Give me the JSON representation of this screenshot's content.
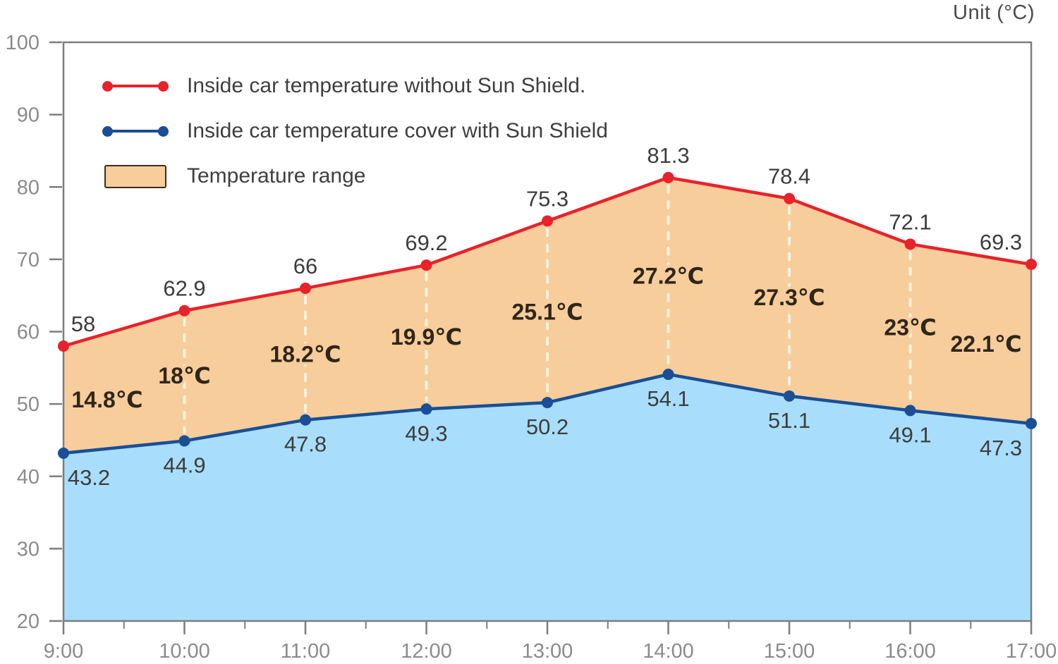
{
  "unit_label": "Unit (°C)",
  "legend": {
    "items": [
      {
        "label": "Inside car temperature without Sun Shield.",
        "marker": "red-line-with-dots",
        "color": "#e8222b"
      },
      {
        "label": "Inside car temperature cover with Sun Shield",
        "marker": "navy-line-with-dots",
        "color": "#1a4e96"
      },
      {
        "label": "Temperature range",
        "marker": "orange-swatch",
        "color": "#f6cd9b"
      }
    ]
  },
  "chart_data": {
    "type": "line",
    "title": "",
    "xlabel": "",
    "ylabel": "Unit (°C)",
    "categories": [
      "9:00",
      "10:00",
      "11:00",
      "12:00",
      "13:00",
      "14:00",
      "15:00",
      "16:00",
      "17:00"
    ],
    "series": [
      {
        "name": "Inside car temperature without Sun Shield.",
        "color": "#e8222b",
        "values": [
          58,
          62.9,
          66,
          69.2,
          75.3,
          81.3,
          78.4,
          72.1,
          69.3
        ]
      },
      {
        "name": "Inside car temperature cover with Sun Shield",
        "color": "#1a4e96",
        "values": [
          43.2,
          44.9,
          47.8,
          49.3,
          50.2,
          54.1,
          51.1,
          49.1,
          47.3
        ]
      }
    ],
    "difference_labels": [
      "14.8℃",
      "18℃",
      "18.2℃",
      "19.9℃",
      "25.1℃",
      "27.2℃",
      "27.3℃",
      "23℃",
      "22.1℃"
    ],
    "ylim": [
      20,
      100
    ],
    "yticks": [
      20,
      30,
      40,
      50,
      60,
      70,
      80,
      90,
      100
    ],
    "grid": false,
    "legend_position": "top-left-inside",
    "area_fills": {
      "between_series": "#f6cd9b",
      "below_shield_series": "#a8defb"
    }
  },
  "appearance": {
    "background": "#ffffff",
    "axis_color": "#7d7d7d",
    "tick_label_color": "#8b8b8b",
    "value_label_color": "#3d3d3d",
    "diff_label_color": "#2f2619",
    "legend_text_color": "#3f3f3f",
    "dash_color": "#fbf2de",
    "range_fill": "#f6cd9b",
    "shield_fill": "#a8defb"
  }
}
